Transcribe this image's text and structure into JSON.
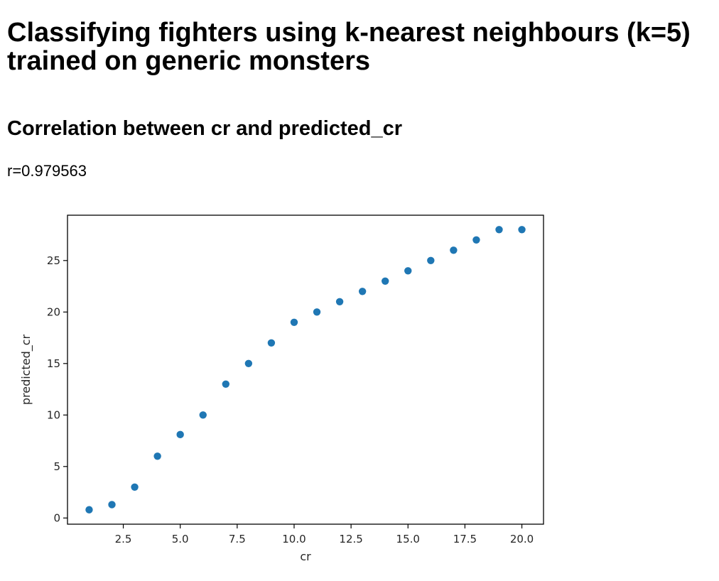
{
  "page": {
    "title": "Classifying fighters using k-nearest neighbours (k=5) trained on generic monsters",
    "section_title": "Correlation between cr and predicted_cr",
    "correlation_text": "r=0.979563"
  },
  "colors": {
    "point": "#1f77b4",
    "axis": "#000000",
    "tick_text": "#262626"
  },
  "chart_data": {
    "type": "scatter",
    "title": "",
    "xlabel": "cr",
    "ylabel": "predicted_cr",
    "x": [
      1,
      2,
      3,
      4,
      5,
      6,
      7,
      8,
      9,
      10,
      11,
      12,
      13,
      14,
      15,
      16,
      17,
      18,
      19,
      20
    ],
    "y": [
      0.8,
      1.3,
      3,
      6,
      8.1,
      10,
      13,
      15,
      17,
      19,
      20,
      21,
      22,
      23,
      24,
      25,
      26,
      27,
      28,
      28
    ],
    "xlim": [
      0.05,
      20.95
    ],
    "ylim": [
      -0.6,
      29.4
    ],
    "xticks": [
      2.5,
      5.0,
      7.5,
      10.0,
      12.5,
      15.0,
      17.5,
      20.0
    ],
    "xtick_labels": [
      "2.5",
      "5.0",
      "7.5",
      "10.0",
      "12.5",
      "15.0",
      "17.5",
      "20.0"
    ],
    "yticks": [
      0,
      5,
      10,
      15,
      20,
      25
    ],
    "ytick_labels": [
      "0",
      "5",
      "10",
      "15",
      "20",
      "25"
    ],
    "grid": false,
    "legend": "none"
  }
}
